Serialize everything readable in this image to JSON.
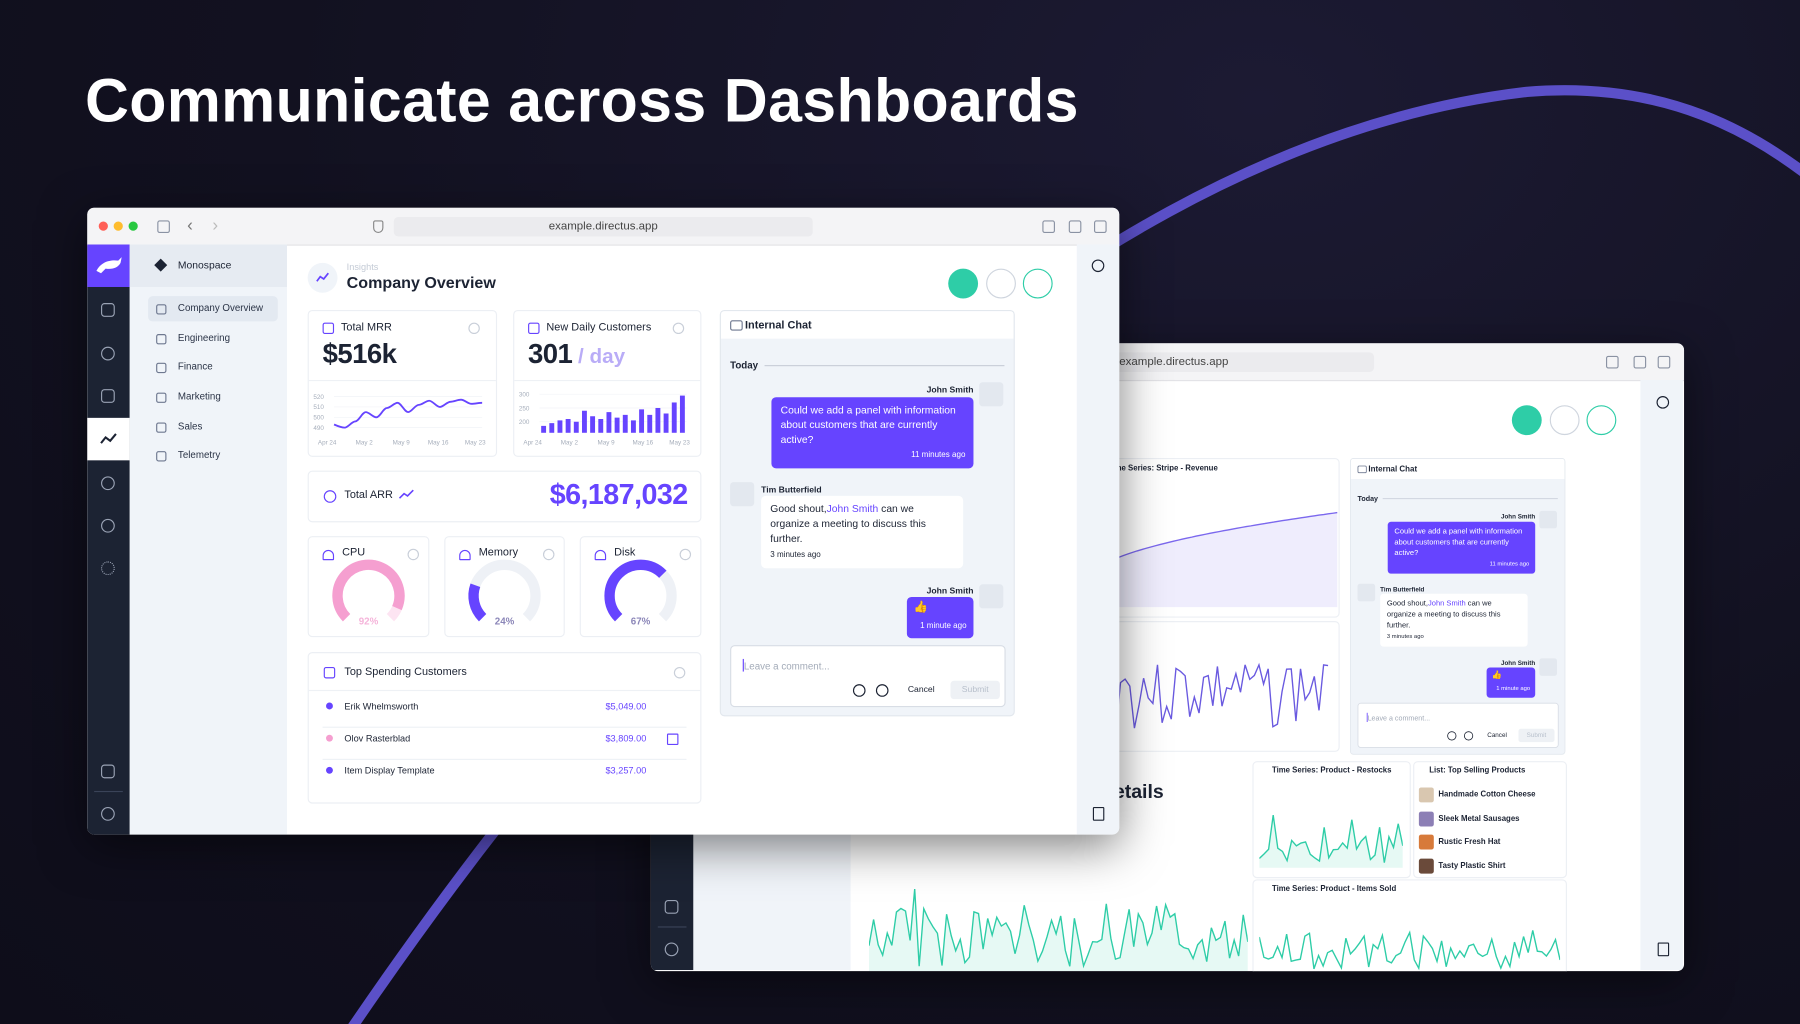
{
  "headline": "Communicate across Dashboards",
  "browser": {
    "url": "example.directus.app"
  },
  "sidebar": {
    "workspace": "Monospace",
    "nav": [
      "Company Overview",
      "Engineering",
      "Finance",
      "Marketing",
      "Sales",
      "Telemetry"
    ]
  },
  "header": {
    "breadcrumb": "Insights",
    "title": "Company Overview"
  },
  "panels": {
    "mrr": {
      "title": "Total MRR",
      "value": "$516k",
      "type": "line",
      "color": "#6644ff",
      "values": [
        493,
        490,
        496,
        505,
        500,
        509,
        514,
        505,
        512,
        516,
        510,
        515,
        517,
        513,
        514
      ],
      "ylim": [
        485,
        525
      ],
      "yticks": [
        520,
        510,
        500,
        490
      ],
      "xlabels": [
        "Apr 24",
        "May 2",
        "May 9",
        "May 16",
        "May 23"
      ]
    },
    "customers": {
      "title": "New Daily Customers",
      "value": "301",
      "unit": "/ day",
      "type": "bar",
      "color": "#6644ff",
      "values": [
        185,
        195,
        205,
        210,
        200,
        240,
        220,
        210,
        235,
        215,
        225,
        205,
        245,
        225,
        250,
        230,
        270,
        295
      ],
      "ylim": [
        160,
        310
      ],
      "yticks": [
        300,
        250,
        200
      ],
      "xlabels": [
        "Apr 24",
        "May 2",
        "May 9",
        "May 16",
        "May 23"
      ]
    },
    "arr": {
      "title": "Total ARR",
      "value": "$6,187,032"
    },
    "gauges": [
      {
        "title": "CPU",
        "value": 92,
        "label": "92%",
        "color": "#f59fd0",
        "track": "#fde4f2"
      },
      {
        "title": "Memory",
        "value": 24,
        "label": "24%",
        "color": "#6644ff",
        "track": "#eef1f6"
      },
      {
        "title": "Disk",
        "value": 67,
        "label": "67%",
        "color": "#6644ff",
        "track": "#eef1f6"
      }
    ],
    "top_customers": {
      "title": "Top Spending Customers",
      "rows": [
        {
          "name": "Erik Whelmsworth",
          "amount": "$5,049.00",
          "color": "#6644ff"
        },
        {
          "name": "Olov Rasterblad",
          "amount": "$3,809.00",
          "color": "#f59fd0"
        },
        {
          "name": "Item Display Template",
          "amount": "$3,257.00",
          "color": "#6644ff"
        }
      ]
    }
  },
  "chat": {
    "title": "Internal Chat",
    "day": "Today",
    "messages": [
      {
        "author": "John Smith",
        "text": "Could we add a panel with information about customers that are currently active?",
        "time": "11 minutes ago"
      },
      {
        "author": "Tim Butterfield",
        "text_before": "Good shout,",
        "mention": "John Smith",
        "text_after": " can we organize a meeting to discuss this further.",
        "time": "3 minutes ago"
      },
      {
        "author": "John Smith",
        "text": "👍",
        "time": "1 minute ago"
      }
    ],
    "placeholder": "Leave a comment...",
    "cancel": "Cancel",
    "submit": "Submit"
  },
  "back": {
    "panels": [
      "Time Series: Stripe - Revenue",
      "Time Series: Product - Restocks",
      "List: Top Selling Products",
      "Time Series: Product - Items Sold"
    ],
    "heading": "Details",
    "products": [
      "Handmade Cotton Cheese",
      "Sleek Metal Sausages",
      "Rustic Fresh Hat",
      "Tasty Plastic Shirt"
    ]
  }
}
